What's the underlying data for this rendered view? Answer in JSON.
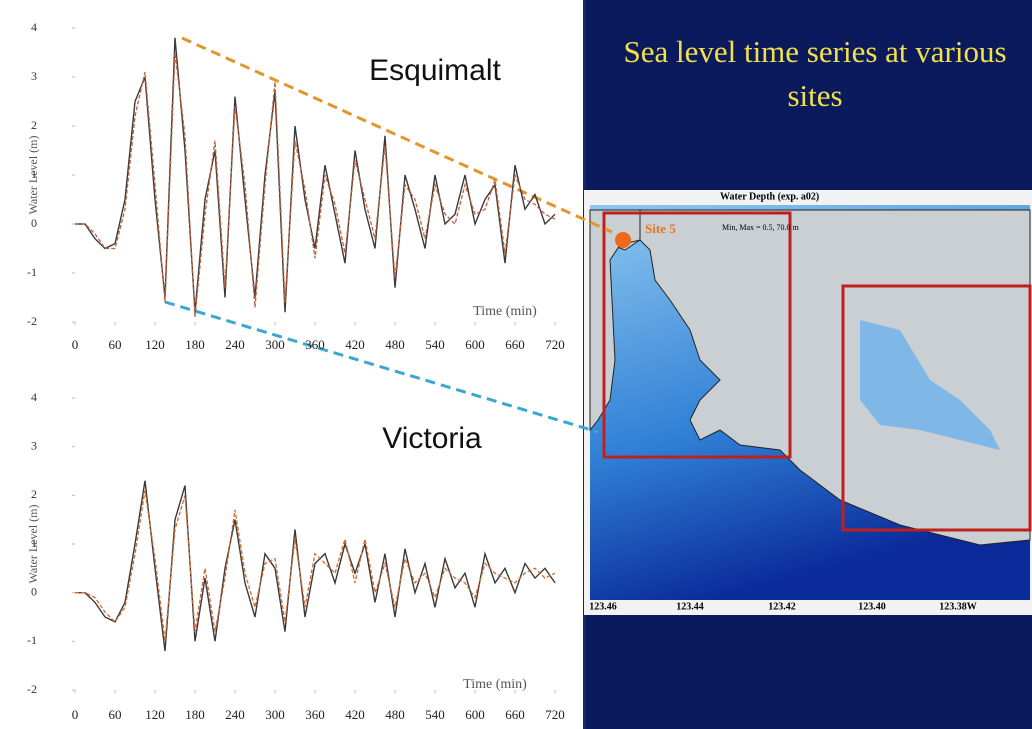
{
  "slide_title": "Sea level time series at various sites",
  "map": {
    "title": "Water Depth (exp. a02)",
    "range_note": "Min, Max = 0.5, 70.0 m",
    "site_label": "Site 5",
    "lon_labels": [
      "123.46",
      "123.44",
      "123.42",
      "123.40",
      "123.38W"
    ]
  },
  "chart_data": [
    {
      "type": "line",
      "title": "Esquimalt",
      "ylabel": "Water Level (m)",
      "xlabel": "Time (min)",
      "x": [
        0,
        15,
        30,
        45,
        60,
        75,
        90,
        105,
        120,
        135,
        150,
        165,
        180,
        195,
        210,
        225,
        240,
        255,
        270,
        285,
        300,
        315,
        330,
        345,
        360,
        375,
        390,
        405,
        420,
        435,
        450,
        465,
        480,
        495,
        510,
        525,
        540,
        555,
        570,
        585,
        600,
        615,
        630,
        645,
        660,
        675,
        690,
        705,
        720
      ],
      "series": [
        {
          "color": "#3a3a3a",
          "values": [
            0,
            0,
            -0.3,
            -0.5,
            -0.4,
            0.5,
            2.5,
            3.0,
            0.5,
            -1.5,
            3.8,
            1.5,
            -1.8,
            0.5,
            1.5,
            -1.5,
            2.6,
            0.5,
            -1.5,
            1.0,
            2.7,
            -1.8,
            2.0,
            0.5,
            -0.5,
            1.2,
            0.2,
            -0.8,
            1.5,
            0.3,
            -0.5,
            1.8,
            -1.3,
            1.0,
            0.3,
            -0.5,
            1.0,
            0,
            0.2,
            1.0,
            0,
            0.5,
            0.8,
            -0.8,
            1.2,
            0.3,
            0.6,
            0,
            0.2
          ]
        },
        {
          "color": "#c0603a",
          "values": [
            0,
            0,
            -0.2,
            -0.5,
            -0.5,
            0.3,
            2.2,
            3.1,
            0.8,
            -1.6,
            3.5,
            1.8,
            -1.9,
            0.2,
            1.7,
            -1.3,
            2.4,
            0.8,
            -1.7,
            0.8,
            2.9,
            -1.6,
            1.7,
            0.7,
            -0.7,
            1.0,
            0.4,
            -0.6,
            1.3,
            0.5,
            -0.3,
            1.6,
            -1.1,
            0.8,
            0.5,
            -0.3,
            0.8,
            0.2,
            0,
            0.8,
            0.2,
            0.3,
            0.9,
            -0.6,
            1.0,
            0.5,
            0.4,
            0.2,
            0.1
          ]
        }
      ],
      "xlim": [
        0,
        720
      ],
      "ylim": [
        -2,
        4
      ],
      "xticks": [
        0,
        60,
        120,
        180,
        240,
        300,
        360,
        420,
        480,
        540,
        600,
        660,
        720
      ],
      "yticks": [
        -2,
        -1,
        0,
        1,
        2,
        3,
        4
      ]
    },
    {
      "type": "line",
      "title": "Victoria",
      "ylabel": "Water Level (m)",
      "xlabel": "Time (min)",
      "x": [
        0,
        15,
        30,
        45,
        60,
        75,
        90,
        105,
        120,
        135,
        150,
        165,
        180,
        195,
        210,
        225,
        240,
        255,
        270,
        285,
        300,
        315,
        330,
        345,
        360,
        375,
        390,
        405,
        420,
        435,
        450,
        465,
        480,
        495,
        510,
        525,
        540,
        555,
        570,
        585,
        600,
        615,
        630,
        645,
        660,
        675,
        690,
        705,
        720
      ],
      "series": [
        {
          "color": "#3a3a3a",
          "values": [
            0,
            0,
            -0.2,
            -0.5,
            -0.6,
            -0.2,
            1.0,
            2.3,
            0.5,
            -1.2,
            1.5,
            2.2,
            -1.0,
            0.3,
            -1.0,
            0.5,
            1.5,
            0.2,
            -0.5,
            0.8,
            0.5,
            -0.8,
            1.3,
            -0.5,
            0.6,
            0.8,
            0.2,
            1.0,
            0.4,
            1.0,
            -0.2,
            0.8,
            -0.5,
            0.9,
            0,
            0.6,
            -0.3,
            0.7,
            0.1,
            0.4,
            -0.3,
            0.8,
            0.2,
            0.5,
            0,
            0.6,
            0.3,
            0.5,
            0.2
          ]
        },
        {
          "color": "#d06a30",
          "values": [
            0,
            0,
            -0.1,
            -0.4,
            -0.6,
            -0.3,
            0.8,
            2.1,
            0.7,
            -1.0,
            1.3,
            2.0,
            -0.8,
            0.5,
            -0.8,
            0.3,
            1.7,
            0.4,
            -0.3,
            0.6,
            0.7,
            -0.6,
            1.1,
            -0.3,
            0.8,
            0.6,
            0.4,
            1.1,
            0.2,
            1.1,
            0,
            0.6,
            -0.3,
            0.7,
            0.2,
            0.4,
            -0.1,
            0.5,
            0.3,
            0.2,
            -0.1,
            0.6,
            0.4,
            0.3,
            0.2,
            0.4,
            0.5,
            0.3,
            0.4
          ]
        }
      ],
      "xlim": [
        0,
        720
      ],
      "ylim": [
        -2,
        4
      ],
      "xticks": [
        0,
        60,
        120,
        180,
        240,
        300,
        360,
        420,
        480,
        540,
        600,
        660,
        720
      ],
      "yticks": [
        -2,
        -1,
        0,
        1,
        2,
        3,
        4
      ]
    }
  ]
}
